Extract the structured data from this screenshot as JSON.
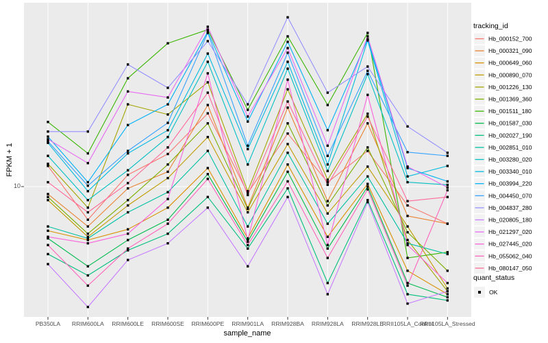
{
  "figure": {
    "y_axis": {
      "label": "FPKM + 1",
      "tick_labels": [
        "10"
      ]
    },
    "x_axis": {
      "label": "sample_name"
    },
    "legend": {
      "tracking_title": "tracking_id",
      "quant_title": "quant_status",
      "quant_items": [
        {
          "label": "OK",
          "shape": "filled-square"
        }
      ]
    },
    "colors": {
      "page_bg": "#ffffff",
      "panel_bg": "#ebebeb",
      "grid": "#ffffff",
      "tick_mark": "#333333",
      "tick_text": "#4d4d4d",
      "title_text": "#000000",
      "point": "#000000",
      "legend_key_bg": "#f2f2f2"
    }
  },
  "chart_data": {
    "type": "line",
    "title": "",
    "xlabel": "sample_name",
    "ylabel": "FPKM + 1",
    "y_scale": "log10",
    "y_major_breaks": [
      10
    ],
    "ylim": [
      2.3,
      78
    ],
    "grid": "major-only",
    "legend_position": "right",
    "point_shape": "filled-square",
    "point_color": "#000000",
    "categories": [
      "PB350LA",
      "RRIM600LA",
      "RRIM600LE",
      "RRIM600SE",
      "RRIM600PE",
      "RRIM901LA",
      "RRIM928BA",
      "RRIM928LA",
      "RRIM928LE",
      "RRII105LA_Control",
      "RRII105LA_Stressed"
    ],
    "series": [
      {
        "name": "Hb_000152_700",
        "color": "#F8766D",
        "values": [
          12.6,
          6.9,
          11.4,
          14.4,
          22.7,
          9.3,
          18.1,
          10.5,
          14.9,
          8.1,
          6.6
        ]
      },
      {
        "name": "Hb_000321_090",
        "color": "#EA8331",
        "values": [
          9.2,
          6.4,
          9.8,
          11.8,
          24.9,
          7.9,
          24.2,
          8.5,
          20.3,
          7.2,
          6.6
        ]
      },
      {
        "name": "Hb_000649_060",
        "color": "#D89000",
        "values": [
          6.1,
          5.5,
          6.2,
          7.9,
          12.3,
          5.6,
          12.8,
          5.7,
          10.3,
          3.9,
          3.0
        ]
      },
      {
        "name": "Hb_000890_070",
        "color": "#C09B00",
        "values": [
          8.6,
          5.7,
          8.1,
          11.0,
          17.4,
          7.5,
          16.1,
          7.4,
          12.5,
          6.4,
          3.2
        ]
      },
      {
        "name": "Hb_001226_130",
        "color": "#A3A500",
        "values": [
          12.9,
          7.9,
          25.1,
          22.4,
          32.1,
          9.5,
          29.7,
          10.8,
          22.6,
          5.5,
          3.1
        ]
      },
      {
        "name": "Hb_001369_360",
        "color": "#7CAE00",
        "values": [
          8.9,
          5.9,
          8.6,
          12.8,
          20.3,
          7.8,
          20.3,
          8.1,
          15.5,
          6.0,
          3.9
        ]
      },
      {
        "name": "Hb_001511_180",
        "color": "#39B600",
        "values": [
          20.6,
          14.5,
          33.6,
          49.7,
          57.9,
          23.6,
          53.7,
          24.9,
          55.8,
          4.5,
          4.8
        ]
      },
      {
        "name": "Hb_001587_030",
        "color": "#00BB4E",
        "values": [
          5.6,
          4.1,
          5.5,
          6.9,
          11.5,
          5.4,
          11.8,
          5.0,
          10.0,
          3.4,
          2.9
        ]
      },
      {
        "name": "Hb_002027_190",
        "color": "#00BF7D",
        "values": [
          4.7,
          3.7,
          4.9,
          5.9,
          8.9,
          5.0,
          9.8,
          3.4,
          8.6,
          3.0,
          2.8
        ]
      },
      {
        "name": "Hb_002851_010",
        "color": "#00C1A3",
        "values": [
          6.4,
          5.6,
          7.5,
          9.4,
          14.9,
          6.4,
          14.6,
          6.6,
          11.2,
          5.3,
          4.7
        ]
      },
      {
        "name": "Hb_003280_020",
        "color": "#00BFC4",
        "values": [
          14.1,
          8.6,
          12.0,
          17.4,
          40.4,
          12.8,
          37.4,
          11.9,
          35.2,
          10.5,
          10.2
        ]
      },
      {
        "name": "Hb_003340_010",
        "color": "#00BAE0",
        "values": [
          16.3,
          9.5,
          14.5,
          18.8,
          44.3,
          15.2,
          40.4,
          12.8,
          51.3,
          11.2,
          12.6
        ]
      },
      {
        "name": "Hb_003994_220",
        "color": "#00B0F6",
        "values": [
          17.5,
          10.5,
          19.9,
          25.1,
          56.6,
          20.7,
          50.5,
          18.8,
          52.0,
          12.3,
          10.6
        ]
      },
      {
        "name": "Hb_004450_070",
        "color": "#35A2FF",
        "values": [
          16.6,
          10.1,
          14.9,
          20.4,
          55.8,
          15.8,
          44.7,
          14.1,
          36.5,
          14.7,
          14.1
        ]
      },
      {
        "name": "Hb_004837_280",
        "color": "#9590FF",
        "values": [
          18.5,
          18.5,
          39.2,
          30.2,
          50.9,
          25.1,
          66.5,
          28.6,
          38.3,
          19.6,
          14.6
        ]
      },
      {
        "name": "Hb_020805_180",
        "color": "#C77CFF",
        "values": [
          4.2,
          2.6,
          4.4,
          5.3,
          7.9,
          4.1,
          8.9,
          3.0,
          8.4,
          2.7,
          3.1
        ]
      },
      {
        "name": "Hb_021297_020",
        "color": "#E76BF3",
        "values": [
          17.0,
          13.0,
          29.0,
          27.1,
          59.8,
          21.9,
          47.1,
          15.8,
          53.7,
          12.5,
          9.9
        ]
      },
      {
        "name": "Hb_027445_020",
        "color": "#FA62DB",
        "values": [
          5.7,
          5.3,
          5.9,
          8.7,
          35.5,
          5.5,
          33.1,
          5.2,
          27.9,
          5.2,
          3.4
        ]
      },
      {
        "name": "Hb_055062_040",
        "color": "#FF62BC",
        "values": [
          5.2,
          3.3,
          5.0,
          6.6,
          10.9,
          5.2,
          10.6,
          4.5,
          9.7,
          3.3,
          9.6
        ]
      },
      {
        "name": "Hb_080147_050",
        "color": "#FF6A98",
        "values": [
          10.5,
          7.5,
          10.4,
          15.5,
          28.6,
          9.1,
          25.9,
          10.2,
          21.9,
          8.5,
          8.9
        ]
      }
    ],
    "quant_status": {
      "title": "quant_status",
      "values": [
        "OK"
      ]
    }
  }
}
